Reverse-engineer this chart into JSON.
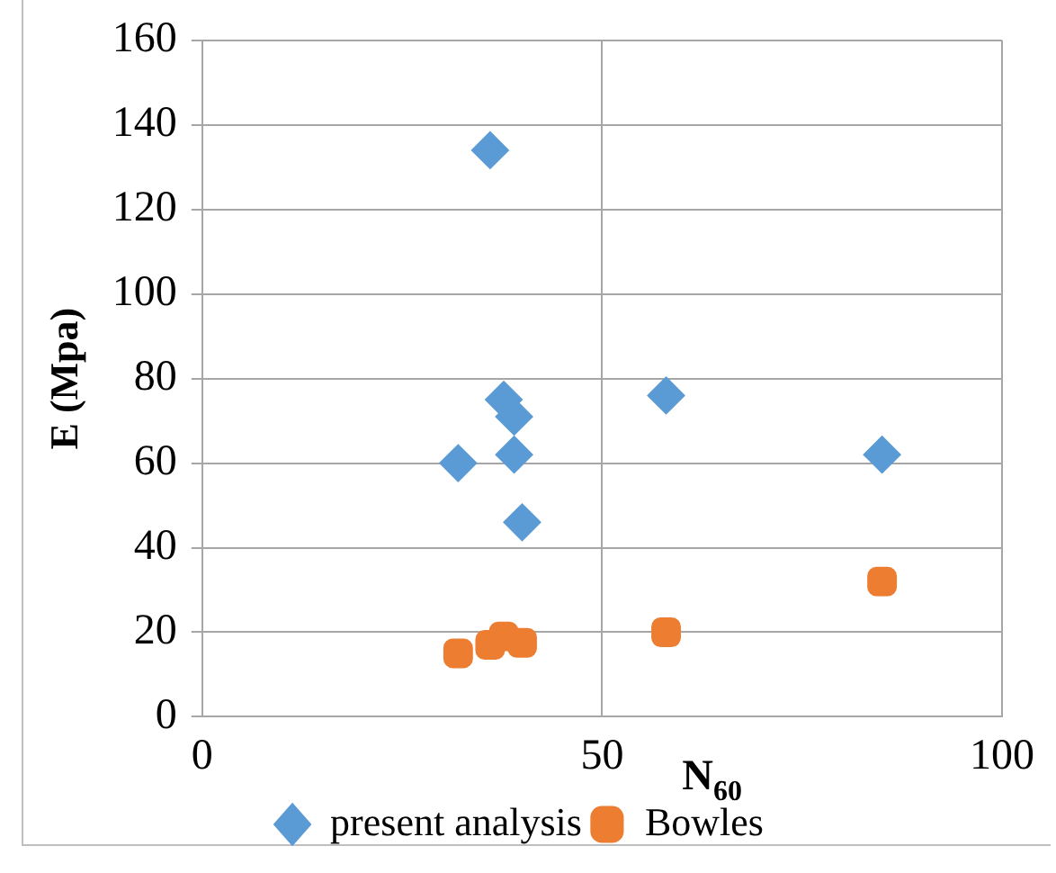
{
  "chart_data": {
    "type": "scatter",
    "xlabel": "N$_{60}$",
    "ylabel": "E (Mpa)",
    "xlim": [
      0,
      100
    ],
    "xticks": [
      0,
      50,
      100
    ],
    "ylim": [
      0,
      160
    ],
    "yticks": [
      0,
      20,
      40,
      60,
      80,
      100,
      120,
      140,
      160
    ],
    "grid": true,
    "legend": "bottom",
    "series": [
      {
        "name": "present analysis",
        "color": "#5b9bd5",
        "marker": "diamond",
        "x": [
          36,
          37.7,
          39,
          32,
          39,
          40,
          58,
          85
        ],
        "values": [
          134,
          75,
          71,
          60,
          62,
          46,
          76,
          62
        ]
      },
      {
        "name": "Bowles",
        "color": "#ed7d31",
        "marker": "square",
        "x": [
          36,
          37.7,
          32,
          40,
          58,
          85
        ],
        "values": [
          17,
          19,
          15,
          17.5,
          20,
          32
        ]
      }
    ]
  }
}
